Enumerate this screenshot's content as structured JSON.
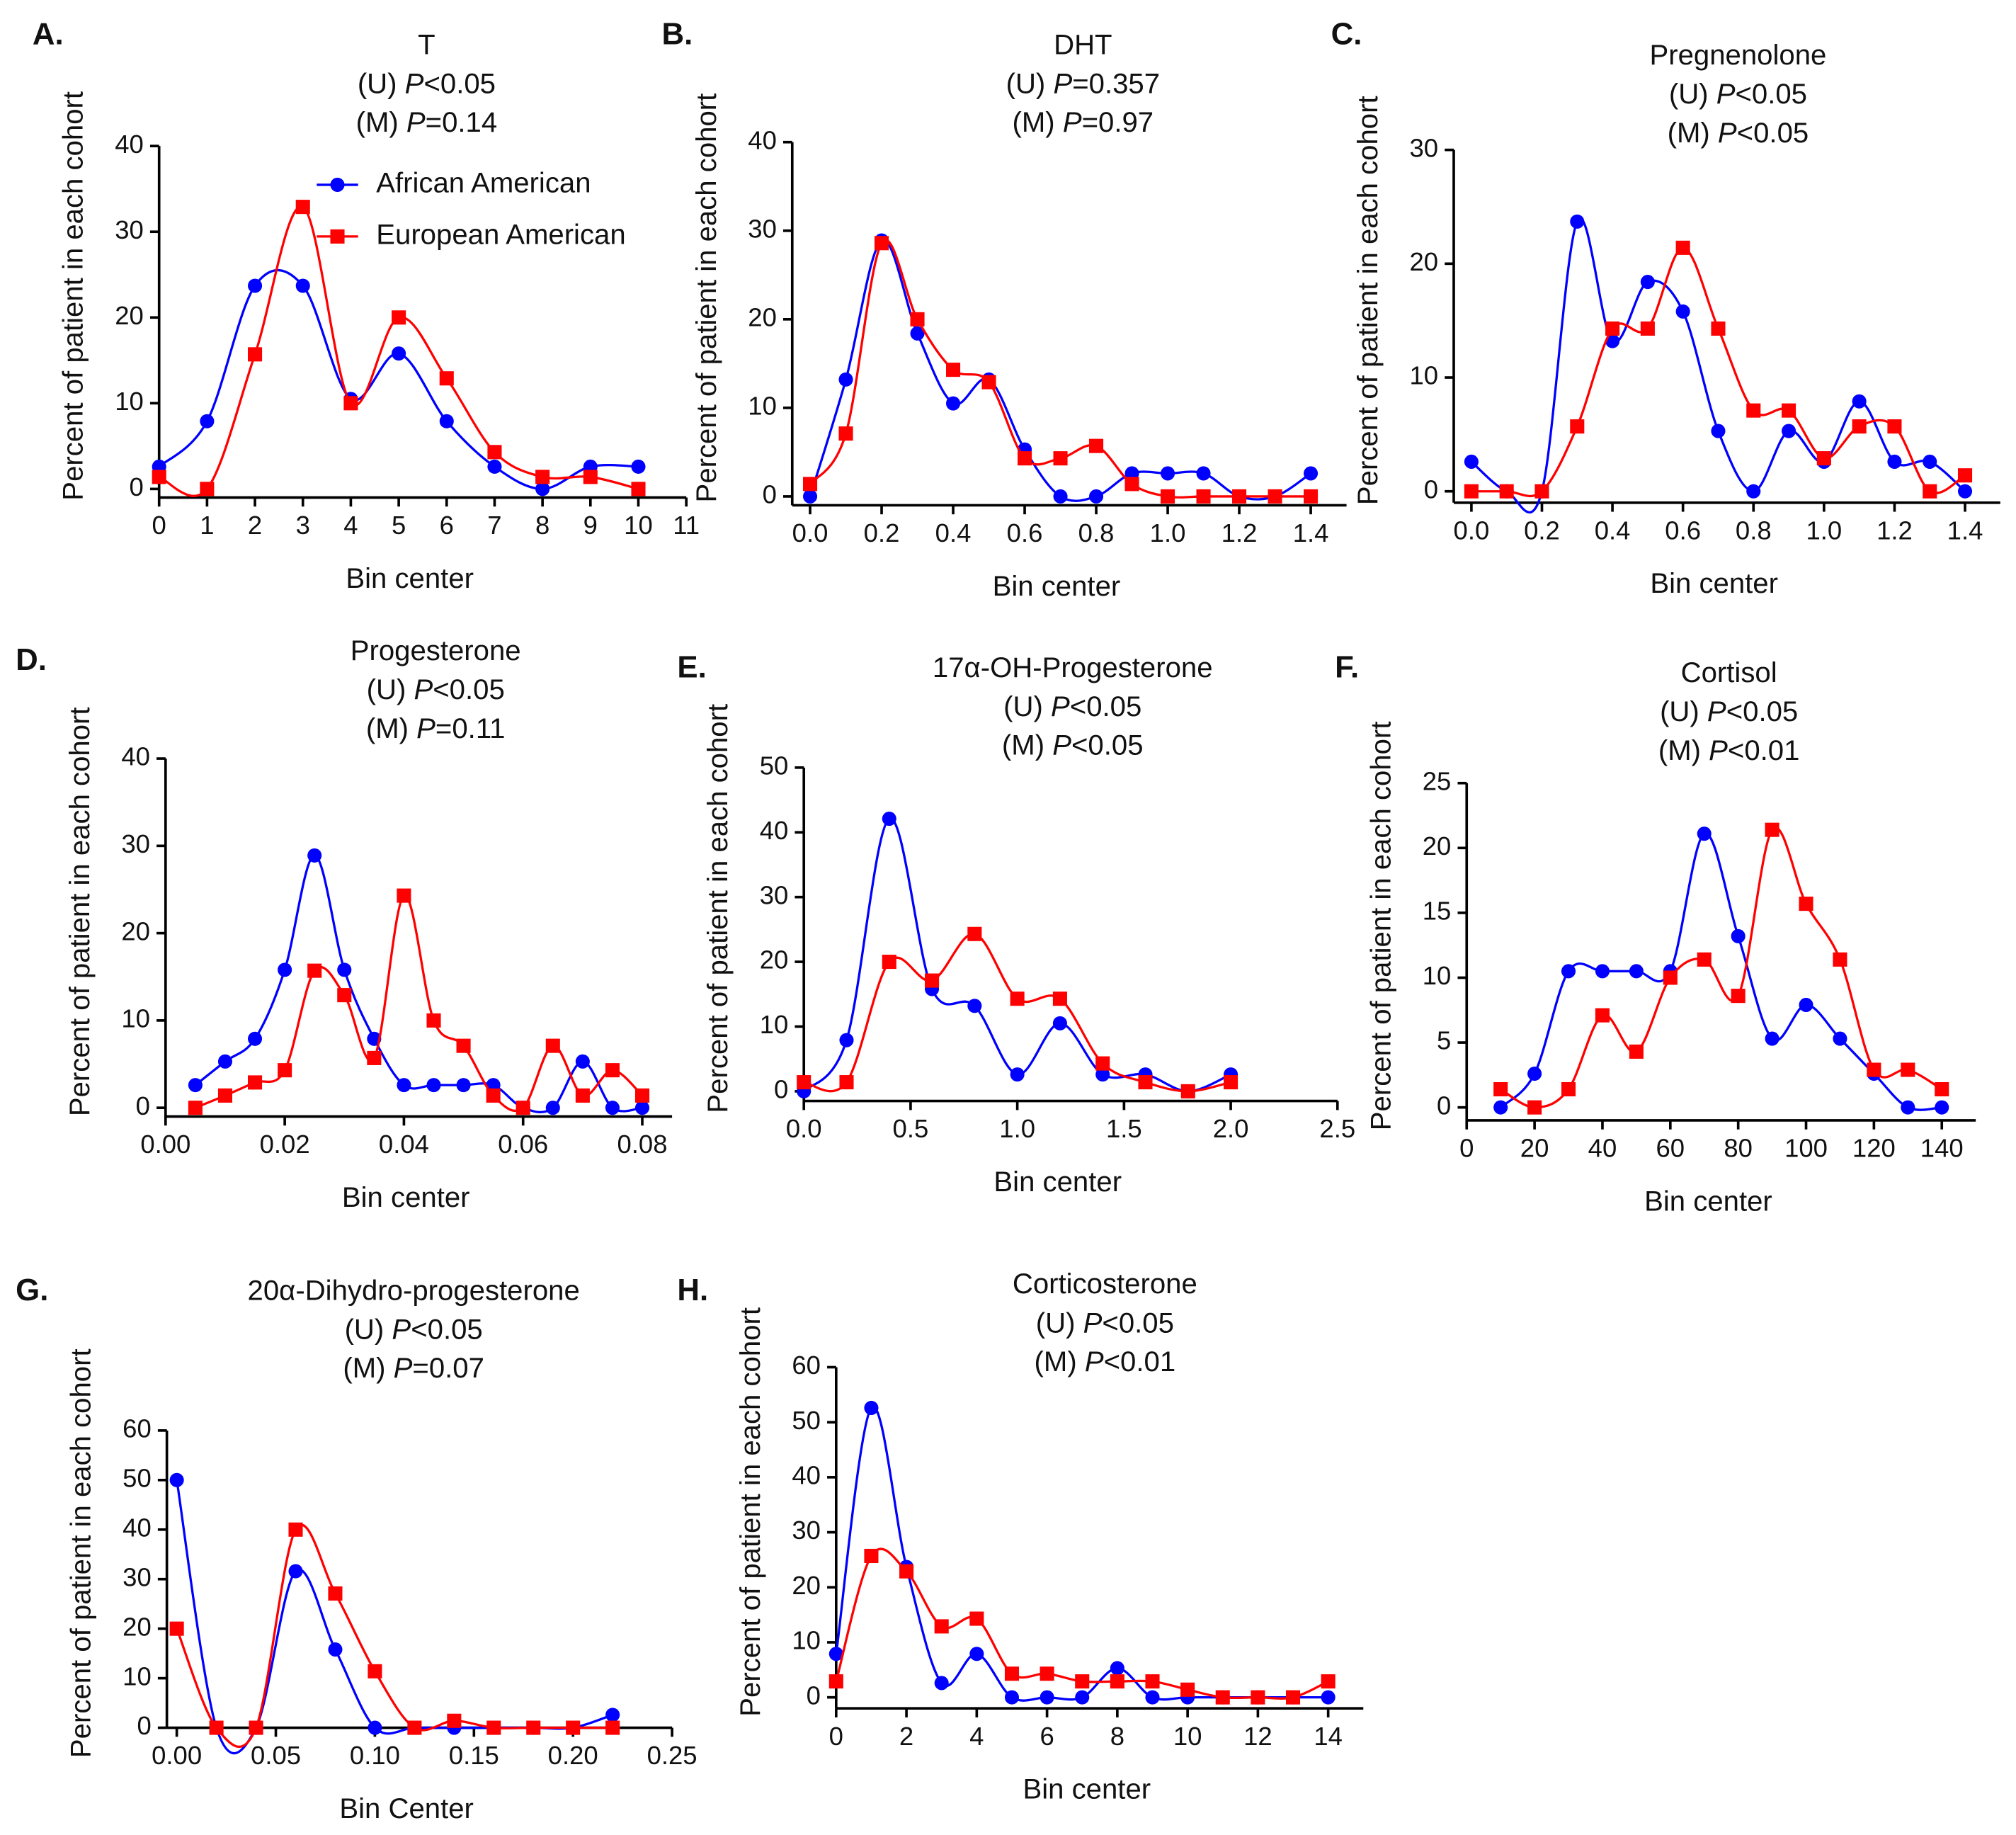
{
  "chart_data": [
    {
      "type": "line",
      "panel": "A.",
      "title": "T",
      "subtitle": [
        "(U) P<0.05",
        "(M) P=0.14"
      ],
      "xlabel": "Bin center",
      "ylabel": "Percent of patient in each cohort",
      "x": [
        0,
        1,
        2,
        3,
        4,
        5,
        6,
        7,
        8,
        9,
        10
      ],
      "series": [
        {
          "name": "African American",
          "color": "#0000ff",
          "marker": "circle",
          "values": [
            2.6,
            7.9,
            23.7,
            23.7,
            10.5,
            15.8,
            7.9,
            2.6,
            0,
            2.6,
            2.6
          ]
        },
        {
          "name": "European American",
          "color": "#ff0000",
          "marker": "square",
          "values": [
            1.4,
            0,
            15.7,
            32.9,
            10,
            20,
            12.9,
            4.3,
            1.4,
            1.4,
            0
          ]
        }
      ],
      "xlim": [
        0,
        11
      ],
      "xticks": [
        0,
        1,
        2,
        3,
        4,
        5,
        6,
        7,
        8,
        9,
        10,
        11
      ],
      "ylim": [
        -1,
        40
      ],
      "yticks": [
        0,
        10,
        20,
        30,
        40
      ],
      "legend": "upper right"
    },
    {
      "type": "line",
      "panel": "B.",
      "title": "DHT",
      "subtitle": [
        "(U) P=0.357",
        "(M) P=0.97"
      ],
      "xlabel": "Bin center",
      "ylabel": "Percent of patient in each cohort",
      "x": [
        0,
        0.1,
        0.2,
        0.3,
        0.4,
        0.5,
        0.6,
        0.7,
        0.8,
        0.9,
        1.0,
        1.1,
        1.2,
        1.3,
        1.4
      ],
      "series": [
        {
          "color": "#0000ff",
          "marker": "circle",
          "values": [
            0,
            13.2,
            28.9,
            18.4,
            10.5,
            13.2,
            5.3,
            0,
            0,
            2.6,
            2.6,
            2.6,
            0,
            0,
            2.6
          ]
        },
        {
          "color": "#ff0000",
          "marker": "square",
          "values": [
            1.4,
            7.1,
            28.6,
            20,
            14.3,
            12.9,
            4.3,
            4.3,
            5.7,
            1.4,
            0,
            0,
            0,
            0,
            0
          ]
        }
      ],
      "xlim": [
        -0.05,
        1.5
      ],
      "xticks": [
        {
          "value": 0,
          "label": "0.0"
        },
        0.2,
        0.4,
        0.6,
        0.8,
        {
          "value": 1,
          "label": "1.0"
        },
        1.2,
        1.4
      ],
      "ylim": [
        -1,
        40
      ],
      "yticks": [
        0,
        10,
        20,
        30,
        40
      ]
    },
    {
      "type": "line",
      "panel": "C.",
      "title": "Pregnenolone",
      "subtitle": [
        "(U) P<0.05",
        "(M) P<0.05"
      ],
      "xlabel": "Bin center",
      "ylabel": "Percent of patient in each cohort",
      "x": [
        0,
        0.1,
        0.2,
        0.3,
        0.4,
        0.5,
        0.6,
        0.7,
        0.8,
        0.9,
        1.0,
        1.1,
        1.2,
        1.3,
        1.4
      ],
      "series": [
        {
          "color": "#0000ff",
          "marker": "circle",
          "values": [
            2.6,
            0,
            0,
            23.7,
            13.2,
            18.4,
            15.8,
            5.3,
            0,
            5.3,
            2.6,
            7.9,
            2.6,
            2.6,
            0
          ]
        },
        {
          "color": "#ff0000",
          "marker": "square",
          "values": [
            0,
            0,
            0,
            5.7,
            14.3,
            14.3,
            21.4,
            14.3,
            7.1,
            7.1,
            2.9,
            5.7,
            5.7,
            0,
            1.4
          ]
        }
      ],
      "xlim": [
        -0.05,
        1.5
      ],
      "xticks": [
        {
          "value": 0,
          "label": "0.0"
        },
        0.2,
        0.4,
        0.6,
        0.8,
        {
          "value": 1,
          "label": "1.0"
        },
        1.2,
        1.4
      ],
      "ylim": [
        -1,
        30
      ],
      "yticks": [
        0,
        10,
        20,
        30
      ]
    },
    {
      "type": "line",
      "panel": "D.",
      "title": "Progesterone",
      "subtitle": [
        "(U) P<0.05",
        "(M) P=0.11"
      ],
      "xlabel": "Bin center",
      "ylabel": "Percent of patient in each cohort",
      "x": [
        0.005,
        0.01,
        0.015,
        0.02,
        0.025,
        0.03,
        0.035,
        0.04,
        0.045,
        0.05,
        0.055,
        0.06,
        0.065,
        0.07,
        0.075,
        0.08
      ],
      "series": [
        {
          "color": "#0000ff",
          "marker": "circle",
          "values": [
            2.6,
            5.3,
            7.9,
            15.8,
            28.9,
            15.8,
            7.9,
            2.6,
            2.6,
            2.6,
            2.6,
            0,
            0,
            5.3,
            0,
            0
          ]
        },
        {
          "color": "#ff0000",
          "marker": "square",
          "values": [
            0,
            1.4,
            2.9,
            4.3,
            15.7,
            12.9,
            5.7,
            24.3,
            10,
            7.1,
            1.4,
            0,
            7.1,
            1.4,
            4.3,
            1.4
          ]
        }
      ],
      "xlim": [
        0,
        0.085
      ],
      "xticks": [
        {
          "value": 0,
          "label": "0.00"
        },
        0.02,
        0.04,
        0.06,
        0.08
      ],
      "ylim": [
        -1,
        40
      ],
      "yticks": [
        0,
        10,
        20,
        30,
        40
      ]
    },
    {
      "type": "line",
      "panel": "E.",
      "title": "17α-OH-Progesterone",
      "subtitle": [
        "(U) P<0.05",
        "(M) P<0.05"
      ],
      "xlabel": "Bin center",
      "ylabel": "Percent of patient in each cohort",
      "x": [
        0,
        0.2,
        0.4,
        0.6,
        0.8,
        1.0,
        1.2,
        1.4,
        1.6,
        1.8,
        2.0
      ],
      "series": [
        {
          "color": "#0000ff",
          "marker": "circle",
          "values": [
            0,
            7.9,
            42.1,
            15.8,
            13.2,
            2.6,
            10.5,
            2.6,
            2.6,
            0,
            2.6
          ]
        },
        {
          "color": "#ff0000",
          "marker": "square",
          "values": [
            1.4,
            1.4,
            20,
            17.1,
            24.3,
            14.3,
            14.3,
            4.3,
            1.4,
            0,
            1.4
          ]
        }
      ],
      "xlim": [
        0,
        2.5
      ],
      "xticks": [
        {
          "value": 0,
          "label": "0.0"
        },
        0.5,
        {
          "value": 1,
          "label": "1.0"
        },
        1.5,
        {
          "value": 2,
          "label": "2.0"
        },
        2.5
      ],
      "ylim": [
        -1.5,
        50
      ],
      "yticks": [
        0,
        10,
        20,
        30,
        40,
        50
      ]
    },
    {
      "type": "line",
      "panel": "F.",
      "title": "Cortisol",
      "subtitle": [
        "(U) P<0.05",
        "(M) P<0.01"
      ],
      "xlabel": "Bin center",
      "ylabel": "Percent of patient in each cohort",
      "x": [
        10,
        20,
        30,
        40,
        50,
        60,
        70,
        80,
        90,
        100,
        110,
        120,
        130,
        140
      ],
      "series": [
        {
          "color": "#0000ff",
          "marker": "circle",
          "values": [
            0,
            2.6,
            10.5,
            10.5,
            10.5,
            10.5,
            21.1,
            13.2,
            5.3,
            7.9,
            5.3,
            2.6,
            0,
            0
          ]
        },
        {
          "color": "#ff0000",
          "marker": "square",
          "values": [
            1.4,
            0,
            1.4,
            7.1,
            4.3,
            10,
            11.4,
            8.6,
            21.4,
            15.7,
            11.4,
            2.9,
            2.9,
            1.4
          ]
        }
      ],
      "xlim": [
        0,
        150
      ],
      "xticks": [
        0,
        20,
        40,
        60,
        80,
        100,
        120,
        140
      ],
      "ylim": [
        -1,
        25
      ],
      "yticks": [
        0,
        5,
        10,
        15,
        20,
        25
      ]
    },
    {
      "type": "line",
      "panel": "G.",
      "title": "20α-Dihydro-progesterone",
      "subtitle": [
        "(U) P<0.05",
        "(M) P=0.07"
      ],
      "xlabel": "Bin Center",
      "ylabel": "Percent of patient in each cohort",
      "x": [
        0,
        0.02,
        0.04,
        0.06,
        0.08,
        0.1,
        0.12,
        0.14,
        0.16,
        0.18,
        0.2,
        0.22
      ],
      "series": [
        {
          "color": "#0000ff",
          "marker": "circle",
          "values": [
            50,
            0,
            0,
            31.6,
            15.8,
            0,
            0,
            0,
            0,
            0,
            0,
            2.6
          ]
        },
        {
          "color": "#ff0000",
          "marker": "square",
          "values": [
            20,
            0,
            0,
            40,
            27.1,
            11.4,
            0,
            1.4,
            0,
            0,
            0,
            0
          ]
        }
      ],
      "xlim": [
        -0.005,
        0.25
      ],
      "xticks": [
        {
          "value": 0,
          "label": "0.00"
        },
        0.05,
        {
          "value": 0.1,
          "label": "0.10"
        },
        0.15,
        {
          "value": 0.2,
          "label": "0.20"
        },
        0.25
      ],
      "ylim": [
        0,
        60
      ],
      "yticks": [
        0,
        10,
        20,
        30,
        40,
        50,
        60
      ]
    },
    {
      "type": "line",
      "panel": "H.",
      "title": "Corticosterone",
      "subtitle": [
        "(U) P<0.05",
        "(M) P<0.01"
      ],
      "xlabel": "Bin center",
      "ylabel": "Percent of patient in each cohort",
      "x": [
        0,
        1,
        2,
        3,
        4,
        5,
        6,
        7,
        8,
        9,
        10,
        11,
        12,
        13,
        14
      ],
      "series": [
        {
          "color": "#0000ff",
          "marker": "circle",
          "values": [
            7.9,
            52.6,
            23.7,
            2.6,
            7.9,
            0,
            0,
            0,
            5.3,
            0,
            0,
            0,
            0,
            0,
            0
          ]
        },
        {
          "color": "#ff0000",
          "marker": "square",
          "values": [
            2.9,
            25.7,
            22.9,
            12.9,
            14.3,
            4.3,
            4.3,
            2.9,
            2.9,
            2.9,
            1.4,
            0,
            0,
            0,
            2.9
          ]
        }
      ],
      "xlim": [
        0,
        15
      ],
      "xticks": [
        0,
        2,
        4,
        6,
        8,
        10,
        12,
        14
      ],
      "ylim": [
        -2,
        60
      ],
      "yticks": [
        0,
        10,
        20,
        30,
        40,
        50,
        60
      ]
    }
  ]
}
